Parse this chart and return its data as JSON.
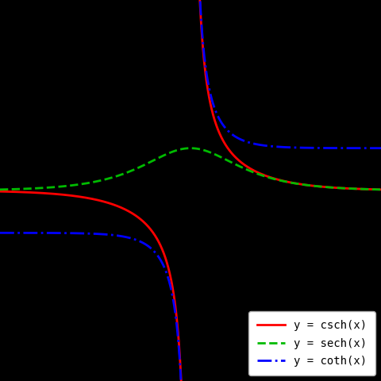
{
  "xlim": [
    -4.5,
    4.5
  ],
  "ylim": [
    -4.5,
    4.5
  ],
  "background_color": "#000000",
  "csch_color": "#ff0000",
  "sech_color": "#00bb00",
  "coth_color": "#0000ff",
  "csch_label": "y = csch(x)",
  "sech_label": "y = sech(x)",
  "coth_label": "y = coth(x)",
  "legend_facecolor": "#ffffff",
  "legend_edgecolor": "#aaaaaa",
  "legend_fontsize": 10,
  "linewidth": 2.0,
  "num_points": 3000
}
